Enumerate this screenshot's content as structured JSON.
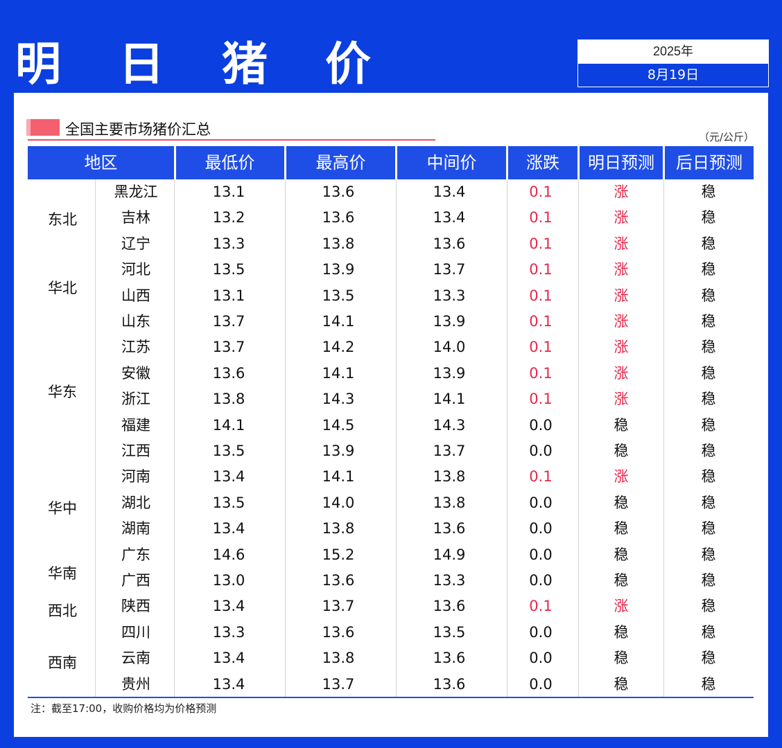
{
  "title": "明 日 猪 价",
  "date": {
    "year": "2025年",
    "day": "8月19日"
  },
  "subtitle": "全国主要市场猪价汇总",
  "unit": "（元/公斤）",
  "headers": [
    "地区",
    "最低价",
    "最高价",
    "中间价",
    "涨跌",
    "明日预测",
    "后日预测"
  ],
  "regions": [
    "东北",
    "华北",
    "华东",
    "华中",
    "华南",
    "西北",
    "西南"
  ],
  "rows": [
    {
      "province": "黑龙江",
      "low": "13.1",
      "high": "13.6",
      "mid": "13.4",
      "change": "0.1",
      "tomorrow": "涨",
      "after": "稳"
    },
    {
      "province": "吉林",
      "low": "13.2",
      "high": "13.6",
      "mid": "13.4",
      "change": "0.1",
      "tomorrow": "涨",
      "after": "稳"
    },
    {
      "province": "辽宁",
      "low": "13.3",
      "high": "13.8",
      "mid": "13.6",
      "change": "0.1",
      "tomorrow": "涨",
      "after": "稳"
    },
    {
      "province": "河北",
      "low": "13.5",
      "high": "13.9",
      "mid": "13.7",
      "change": "0.1",
      "tomorrow": "涨",
      "after": "稳"
    },
    {
      "province": "山西",
      "low": "13.1",
      "high": "13.5",
      "mid": "13.3",
      "change": "0.1",
      "tomorrow": "涨",
      "after": "稳"
    },
    {
      "province": "山东",
      "low": "13.7",
      "high": "14.1",
      "mid": "13.9",
      "change": "0.1",
      "tomorrow": "涨",
      "after": "稳"
    },
    {
      "province": "江苏",
      "low": "13.7",
      "high": "14.2",
      "mid": "14.0",
      "change": "0.1",
      "tomorrow": "涨",
      "after": "稳"
    },
    {
      "province": "安徽",
      "low": "13.6",
      "high": "14.1",
      "mid": "13.9",
      "change": "0.1",
      "tomorrow": "涨",
      "after": "稳"
    },
    {
      "province": "浙江",
      "low": "13.8",
      "high": "14.3",
      "mid": "14.1",
      "change": "0.1",
      "tomorrow": "涨",
      "after": "稳"
    },
    {
      "province": "福建",
      "low": "14.1",
      "high": "14.5",
      "mid": "14.3",
      "change": "0.0",
      "tomorrow": "稳",
      "after": "稳"
    },
    {
      "province": "江西",
      "low": "13.5",
      "high": "13.9",
      "mid": "13.7",
      "change": "0.0",
      "tomorrow": "稳",
      "after": "稳"
    },
    {
      "province": "河南",
      "low": "13.4",
      "high": "14.1",
      "mid": "13.8",
      "change": "0.1",
      "tomorrow": "涨",
      "after": "稳"
    },
    {
      "province": "湖北",
      "low": "13.5",
      "high": "14.0",
      "mid": "13.8",
      "change": "0.0",
      "tomorrow": "稳",
      "after": "稳"
    },
    {
      "province": "湖南",
      "low": "13.4",
      "high": "13.8",
      "mid": "13.6",
      "change": "0.0",
      "tomorrow": "稳",
      "after": "稳"
    },
    {
      "province": "广东",
      "low": "14.6",
      "high": "15.2",
      "mid": "14.9",
      "change": "0.0",
      "tomorrow": "稳",
      "after": "稳"
    },
    {
      "province": "广西",
      "low": "13.0",
      "high": "13.6",
      "mid": "13.3",
      "change": "0.0",
      "tomorrow": "稳",
      "after": "稳"
    },
    {
      "province": "陕西",
      "low": "13.4",
      "high": "13.7",
      "mid": "13.6",
      "change": "0.1",
      "tomorrow": "涨",
      "after": "稳"
    },
    {
      "province": "四川",
      "low": "13.3",
      "high": "13.6",
      "mid": "13.5",
      "change": "0.0",
      "tomorrow": "稳",
      "after": "稳"
    },
    {
      "province": "云南",
      "low": "13.4",
      "high": "13.8",
      "mid": "13.6",
      "change": "0.0",
      "tomorrow": "稳",
      "after": "稳"
    },
    {
      "province": "贵州",
      "low": "13.4",
      "high": "13.7",
      "mid": "13.6",
      "change": "0.0",
      "tomorrow": "稳",
      "after": "稳"
    }
  ],
  "note": "注：截至17:00，收购价格均为价格预测",
  "colors": {
    "brand_blue": "#0b3fe0",
    "header_blue": "#1f4ee6",
    "rise_red": "#e8264a",
    "marker_pink": "#f4606f"
  }
}
